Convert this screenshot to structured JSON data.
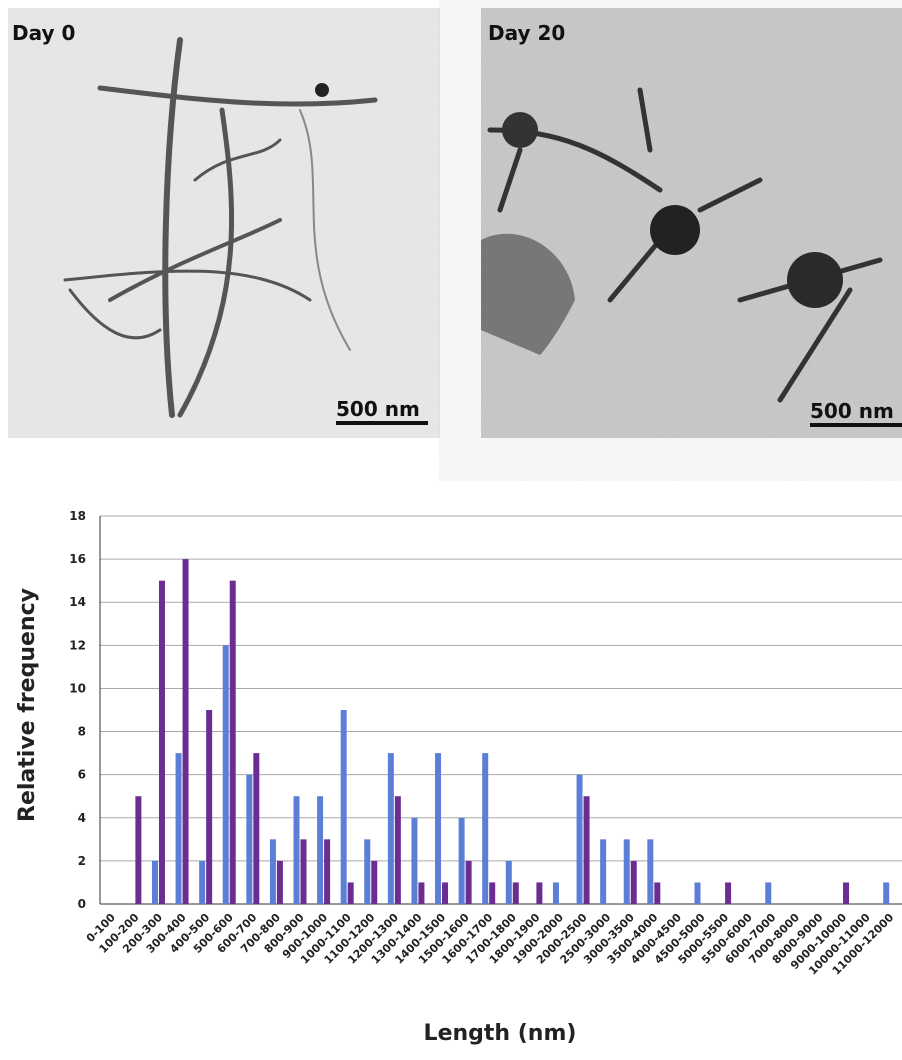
{
  "panels": [
    {
      "label": "Day 0",
      "scale_bar": "500 nm"
    },
    {
      "label": "Day 20",
      "scale_bar": "500 nm"
    }
  ],
  "chart_data": {
    "type": "bar",
    "x_label": "Length (nm)",
    "y_label": "Relative frequency",
    "categories": [
      "0-100",
      "100-200",
      "200-300",
      "300-400",
      "400-500",
      "500-600",
      "600-700",
      "700-800",
      "800-900",
      "900-1000",
      "1000-1100",
      "1100-1200",
      "1200-1300",
      "1300-1400",
      "1400-1500",
      "1500-1600",
      "1600-1700",
      "1700-1800",
      "1800-1900",
      "1900-2000",
      "2000-2500",
      "2500-3000",
      "3000-3500",
      "3500-4000",
      "4000-4500",
      "4500-5000",
      "5000-5500",
      "5500-6000",
      "6000-7000",
      "7000-8000",
      "8000-9000",
      "9000-10000",
      "10000-11000",
      "11000-12000"
    ],
    "series": [
      {
        "color": "#5b7fd6",
        "values": [
          0,
          0,
          2,
          7,
          2,
          12,
          6,
          3,
          5,
          5,
          9,
          3,
          7,
          4,
          7,
          4,
          7,
          2,
          0,
          1,
          6,
          3,
          3,
          3,
          0,
          1,
          0,
          0,
          1,
          0,
          0,
          0,
          0,
          1
        ]
      },
      {
        "color": "#6b2d92",
        "values": [
          0,
          5,
          15,
          16,
          9,
          15,
          7,
          2,
          3,
          3,
          1,
          2,
          5,
          1,
          1,
          2,
          1,
          1,
          1,
          0,
          5,
          0,
          2,
          1,
          0,
          0,
          1,
          0,
          0,
          0,
          0,
          1,
          0,
          0
        ]
      }
    ],
    "ylim": [
      0,
      18
    ],
    "yticks": [
      0,
      2,
      4,
      6,
      8,
      10,
      12,
      14,
      16,
      18
    ],
    "grid": true
  }
}
